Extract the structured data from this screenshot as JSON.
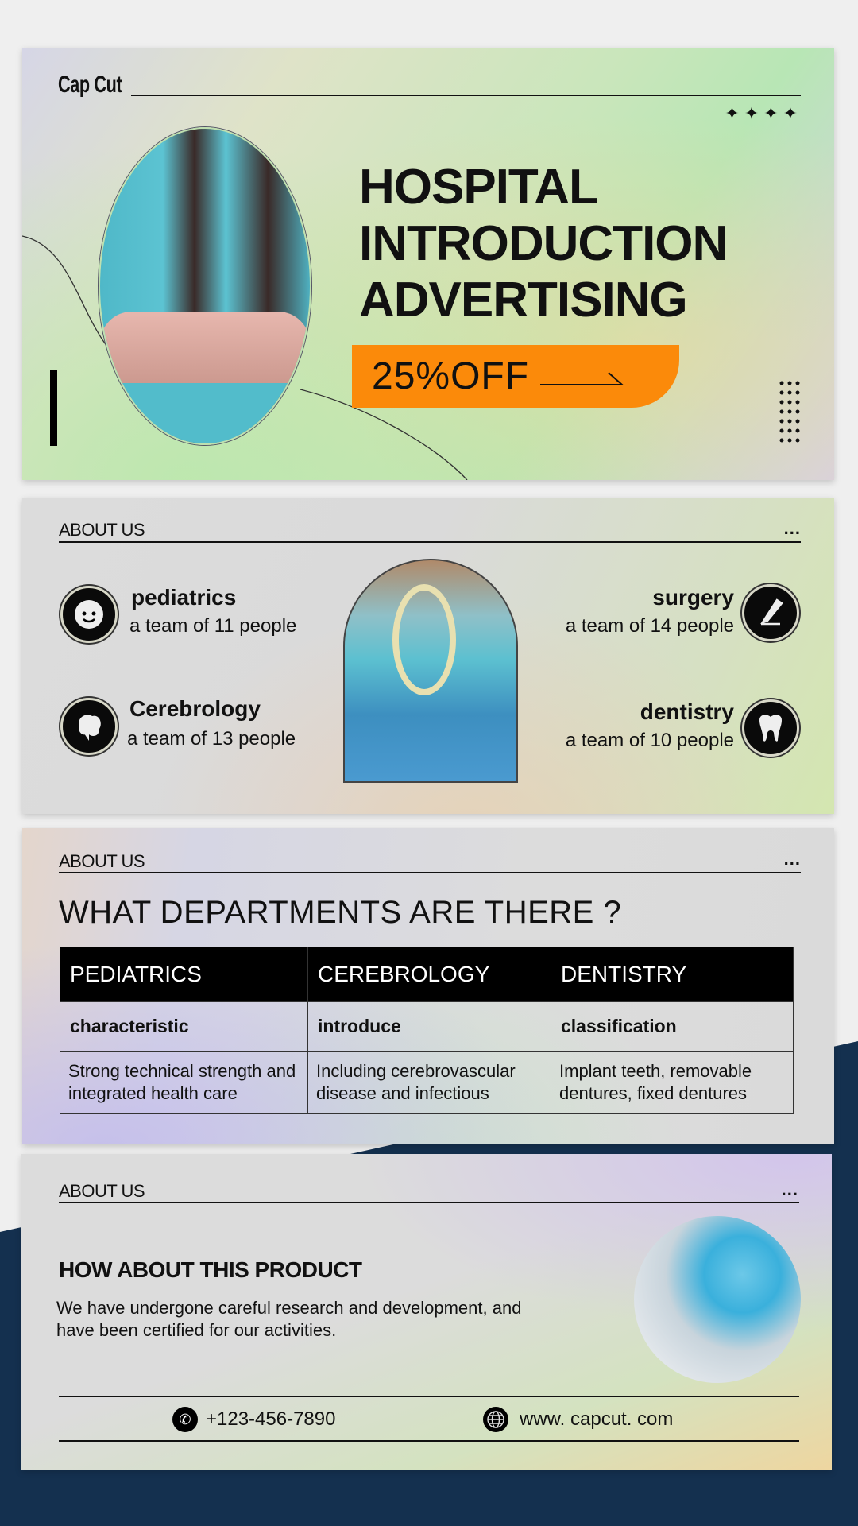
{
  "colors": {
    "accent_orange": "#fb8a0a",
    "navy": "#14304f",
    "black": "#000000"
  },
  "hero": {
    "brand": "Cap Cut",
    "title_lines": [
      "HOSPITAL",
      "INTRODUCTION",
      "ADVERTISING"
    ],
    "offer": "25%OFF",
    "image": "nurse-with-stethoscope-photo"
  },
  "departments_section": {
    "heading": "ABOUT US",
    "more": "...",
    "items": [
      {
        "name": "pediatrics",
        "team": "a team of 11 people",
        "icon": "baby-face-icon"
      },
      {
        "name": "Cerebrology",
        "team": "a team of 13 people",
        "icon": "brain-icon"
      },
      {
        "name": "surgery",
        "team": "a team of 14 people",
        "icon": "scalpel-icon"
      },
      {
        "name": "dentistry",
        "team": "a team of 10 people",
        "icon": "tooth-icon"
      }
    ],
    "image": "surgery-operation-photo"
  },
  "table_section": {
    "heading": "ABOUT US",
    "more": "...",
    "title": "WHAT DEPARTMENTS ARE THERE ?",
    "columns": [
      "PEDIATRICS",
      "CEREBROLOGY",
      "DENTISTRY"
    ],
    "subheaders": [
      "characteristic",
      "introduce",
      "classification"
    ],
    "descriptions": [
      "Strong technical strength and integrated health care",
      "Including cerebrovascular disease and infectious",
      "Implant teeth, removable dentures, fixed dentures"
    ]
  },
  "product_section": {
    "heading": "ABOUT US",
    "more": "...",
    "title": "HOW ABOUT THIS PRODUCT",
    "body": "We have undergone careful research and development, and have been certified for our activities.",
    "phone": "+123-456-7890",
    "website": "www. capcut. com",
    "image": "lab-gloves-test-tube-photo"
  }
}
